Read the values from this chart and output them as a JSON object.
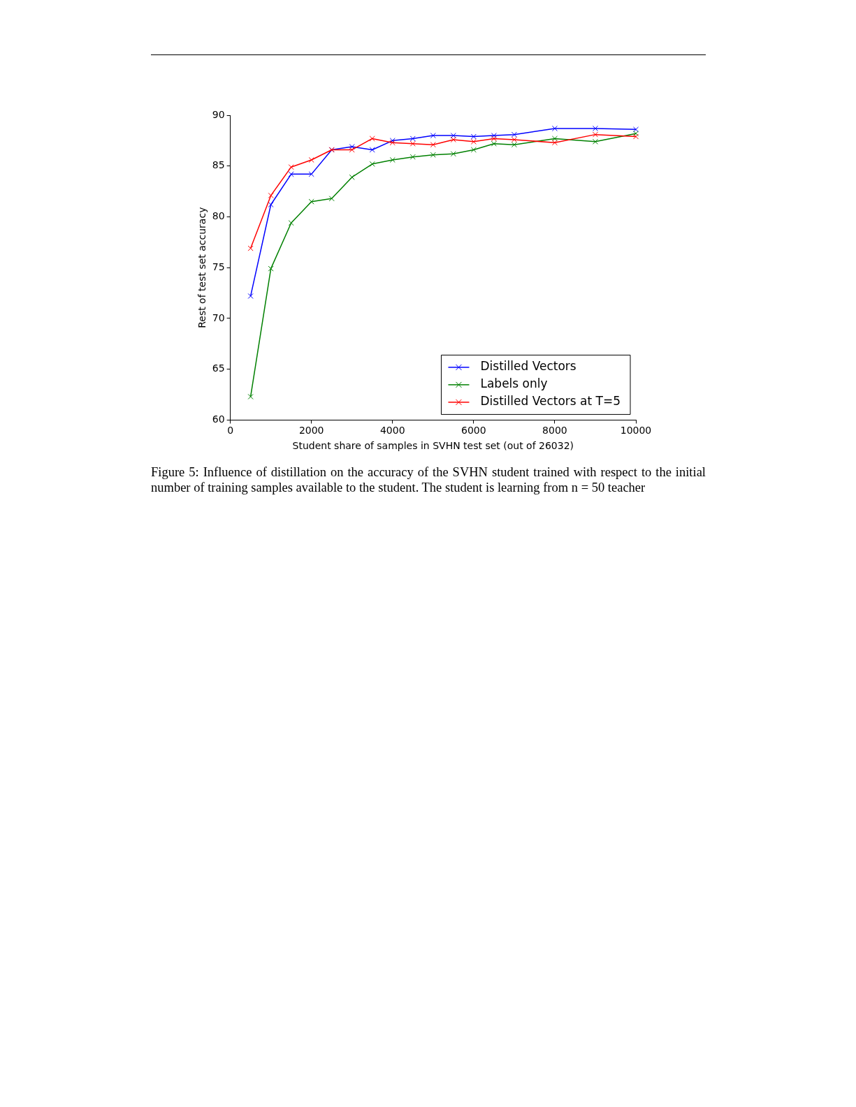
{
  "chart_data": {
    "type": "line",
    "xlabel": "Student share of samples in SVHN test set (out of 26032)",
    "ylabel": "Rest of test set accuracy",
    "x": [
      500,
      1000,
      1500,
      2000,
      2500,
      3000,
      3500,
      4000,
      4500,
      5000,
      5500,
      6000,
      6500,
      7000,
      8000,
      9000,
      10000
    ],
    "series": [
      {
        "name": "Distilled Vectors",
        "color": "#0000ff",
        "values": [
          72.2,
          81.2,
          84.2,
          84.2,
          86.6,
          86.9,
          86.6,
          87.5,
          87.7,
          88.0,
          88.0,
          87.9,
          88.0,
          88.1,
          88.7,
          88.7,
          88.6
        ]
      },
      {
        "name": "Labels only",
        "color": "#008000",
        "values": [
          62.3,
          74.9,
          79.4,
          81.5,
          81.8,
          83.9,
          85.2,
          85.6,
          85.9,
          86.1,
          86.2,
          86.6,
          87.2,
          87.1,
          87.7,
          87.4,
          88.2
        ]
      },
      {
        "name": "Distilled Vectors at T=5",
        "color": "#ff0000",
        "values": [
          76.9,
          82.1,
          84.9,
          85.6,
          86.6,
          86.6,
          87.7,
          87.3,
          87.2,
          87.1,
          87.6,
          87.4,
          87.7,
          87.6,
          87.3,
          88.1,
          87.9
        ]
      }
    ],
    "xlim": [
      0,
      10000
    ],
    "xticks": [
      0,
      2000,
      4000,
      6000,
      8000,
      10000
    ],
    "ylim": [
      60,
      90
    ],
    "yticks": [
      60,
      65,
      70,
      75,
      80,
      85,
      90
    ],
    "grid": false,
    "legend": "bottom right",
    "marker": "cross",
    "line_style": "solid",
    "annotations": [
      "Figure 5: Influence of distillation on the accuracy of the SVHN student trained with respect to the initial number of training samples available to the student.  The student is learning from n = 50 teacher"
    ]
  }
}
